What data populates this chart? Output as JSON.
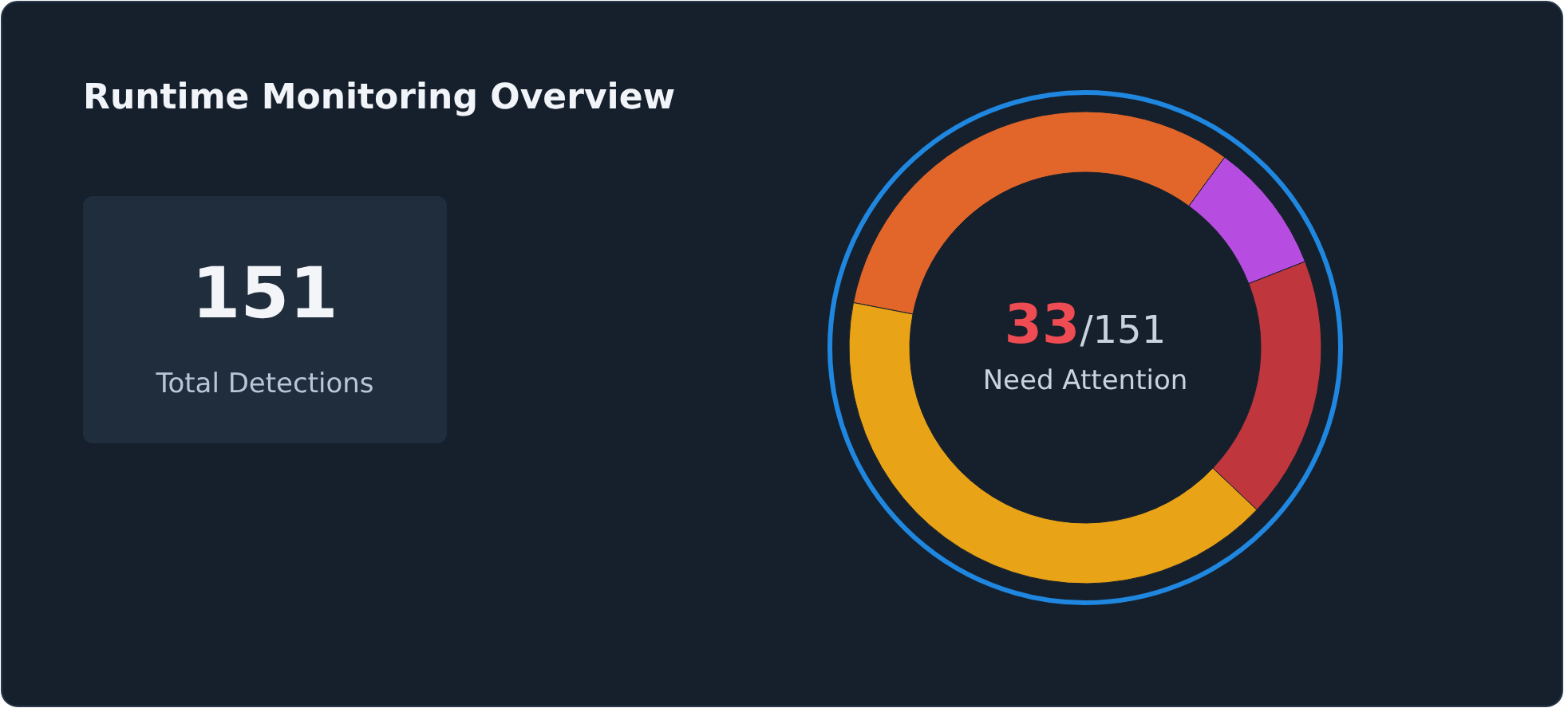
{
  "chart_data": [
    {
      "type": "other",
      "title": "Runtime Monitoring Overview",
      "annotations": [
        "151",
        "Total Detections"
      ]
    },
    {
      "type": "donut",
      "categories": [
        null,
        null,
        null,
        null
      ],
      "values": [
        32,
        9,
        18,
        41
      ],
      "colors": [
        "#e2662a",
        "#b64ce0",
        "#bf363d",
        "#e9a317"
      ],
      "annotations": [
        "33",
        "/151",
        "Need Attention"
      ]
    }
  ]
}
